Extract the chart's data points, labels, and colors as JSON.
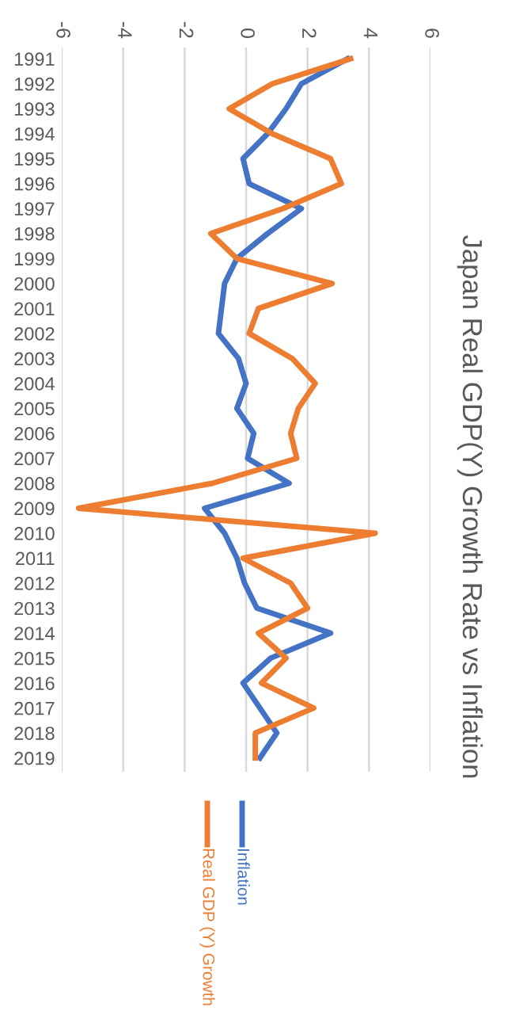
{
  "chart_data": {
    "type": "line",
    "orientation": "horizontal",
    "title": "Japan Real GDP(Y) Growth Rate vs Inflation",
    "categories": [
      "1991",
      "1992",
      "1993",
      "1994",
      "1995",
      "1996",
      "1997",
      "1998",
      "1999",
      "2000",
      "2001",
      "2002",
      "2003",
      "2004",
      "2005",
      "2006",
      "2007",
      "2008",
      "2009",
      "2010",
      "2011",
      "2012",
      "2013",
      "2014",
      "2015",
      "2016",
      "2017",
      "2018",
      "2019"
    ],
    "series": [
      {
        "name": "Inflation",
        "color": "#4472c4",
        "values": [
          3.3,
          1.8,
          1.3,
          0.7,
          -0.1,
          0.1,
          1.8,
          0.7,
          -0.3,
          -0.7,
          -0.8,
          -0.9,
          -0.25,
          0.0,
          -0.3,
          0.25,
          0.05,
          1.4,
          -1.35,
          -0.7,
          -0.3,
          -0.05,
          0.35,
          2.75,
          0.8,
          -0.1,
          0.45,
          1.0,
          0.45
        ]
      },
      {
        "name": "Real GDP (Y) Growth",
        "color": "#ed7d31",
        "values": [
          3.4,
          0.85,
          -0.55,
          0.85,
          2.75,
          3.1,
          1.2,
          -1.15,
          -0.3,
          2.8,
          0.4,
          0.1,
          1.5,
          2.25,
          1.7,
          1.45,
          1.65,
          -1.1,
          -5.45,
          4.2,
          -0.1,
          1.45,
          2.0,
          0.4,
          1.3,
          0.5,
          2.2,
          0.3,
          0.3
        ]
      }
    ],
    "xlim": [
      -6,
      6
    ],
    "xticks": [
      -6,
      -4,
      -2,
      0,
      2,
      4,
      6
    ],
    "grid": "x",
    "legend": "bottom",
    "line_style": "solid",
    "marker": "none"
  }
}
